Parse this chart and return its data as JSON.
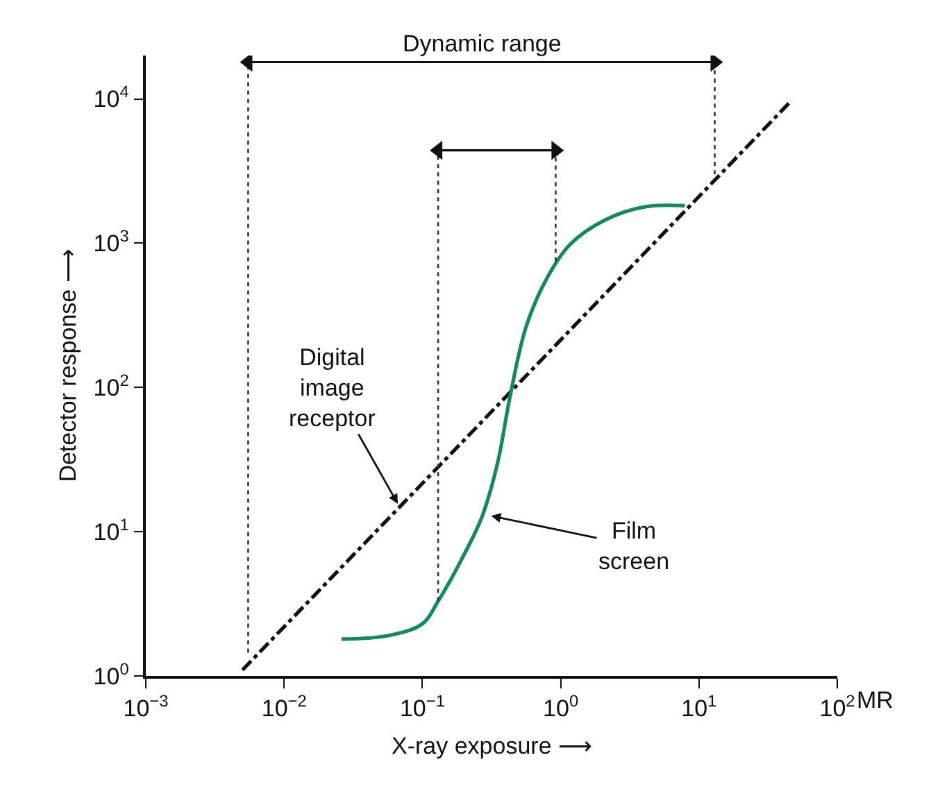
{
  "chart_data": {
    "type": "line",
    "xlabel": "X-ray exposure ⟶",
    "ylabel": "Detector response ⟶",
    "log": "xy",
    "legend": false,
    "xlim": [
      0.001,
      100
    ],
    "ylim": [
      1,
      20000
    ],
    "xticks": [
      {
        "value": 0.001,
        "label": "10$^{−3}$"
      },
      {
        "value": 0.01,
        "label": "10$^{−2}$"
      },
      {
        "value": 0.1,
        "label": "10$^{−1}$"
      },
      {
        "value": 1,
        "label": "10$^{0}$"
      },
      {
        "value": 10,
        "label": "10$^{1}$"
      },
      {
        "value": 100,
        "label": "10$^{2}$"
      }
    ],
    "yticks": [
      {
        "value": 1,
        "label": "10$^{0}$"
      },
      {
        "value": 10,
        "label": "10$^{1}$"
      },
      {
        "value": 100,
        "label": "10$^{2}$"
      },
      {
        "value": 1000,
        "label": "10$^{3}$"
      },
      {
        "value": 10000,
        "label": "10$^{4}$"
      }
    ],
    "series": [
      {
        "color": "#111111",
        "line_style": "dashed",
        "x": [
          0.005,
          45
        ],
        "values": [
          1.1,
          9400
        ]
      },
      {
        "color": "#14895a",
        "line_style": "solid",
        "x": [
          0.026,
          0.056,
          0.1,
          0.13,
          0.19,
          0.27,
          0.35,
          0.43,
          0.56,
          0.79,
          1.17,
          2.1,
          4.1,
          7.9
        ],
        "values": [
          1.8,
          1.9,
          2.3,
          3.3,
          6.3,
          12.7,
          30,
          86,
          260,
          565,
          980,
          1450,
          1790,
          1820
        ]
      },
      {
        "color": "#333333",
        "line_style": "dotted",
        "x": [
          0.0055,
          0.0055
        ],
        "values": [
          1.45,
          18000
        ]
      },
      {
        "color": "#333333",
        "line_style": "dotted",
        "x": [
          13,
          13
        ],
        "values": [
          3000,
          18000
        ]
      },
      {
        "color": "#333333",
        "line_style": "dotted",
        "x": [
          0.13,
          0.13
        ],
        "values": [
          3.3,
          4400
        ]
      },
      {
        "color": "#333333",
        "line_style": "dotted",
        "x": [
          0.92,
          0.92
        ],
        "values": [
          750,
          4400
        ]
      },
      {
        "color": "#111111",
        "line_style": "solid",
        "marker": "triangle",
        "x": [
          0.0055,
          13
        ],
        "values": [
          18000,
          18000
        ]
      },
      {
        "color": "#111111",
        "line_style": "solid",
        "marker": "triangle",
        "x": [
          0.13,
          0.92
        ],
        "values": [
          4400,
          4400
        ]
      }
    ],
    "annotations": [
      "Dynamic range",
      {
        "text": "Digital\nimage\nreceptor",
        "x": 0.068,
        "y": 15
      },
      {
        "text": "Film\nscreen",
        "x": 0.3,
        "y": 13
      },
      "MR"
    ]
  }
}
